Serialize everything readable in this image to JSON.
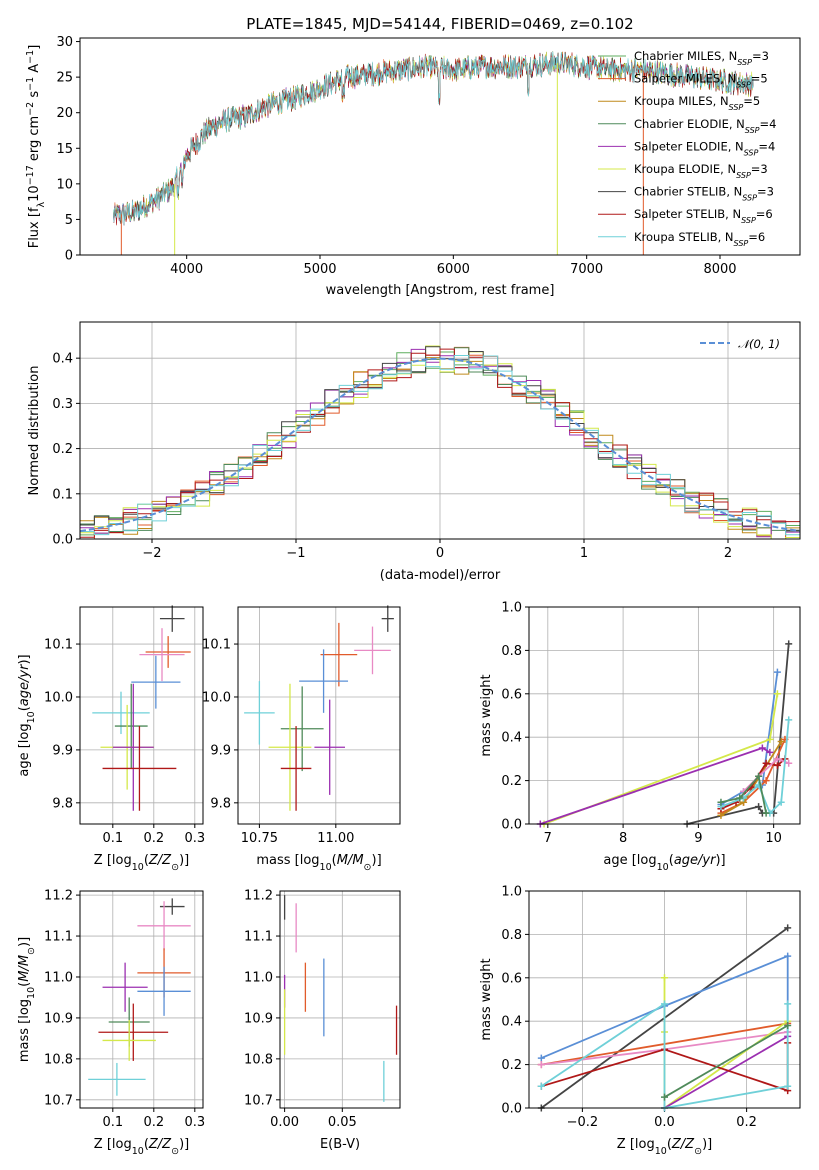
{
  "figure_title": "PLATE=1845, MJD=54144, FIBERID=0469, z=0.102",
  "series": [
    {
      "name": "Chabrier MILES, N$_{SSP}$=3",
      "legend_main": "Chabrier MILES, N",
      "legend_sub": "SSP",
      "legend_tail": "=3",
      "color": "#5fae5f"
    },
    {
      "name": "Salpeter MILES, N$_{SSP}$=5",
      "legend_main": "Salpeter MILES, N",
      "legend_sub": "SSP",
      "legend_tail": "=5",
      "color": "#e15b2b"
    },
    {
      "name": "Kroupa MILES, N$_{SSP}$=5",
      "legend_main": "Kroupa MILES, N",
      "legend_sub": "SSP",
      "legend_tail": "=5",
      "color": "#c08a1c"
    },
    {
      "name": "Chabrier ELODIE, N$_{SSP}$=4",
      "legend_main": "Chabrier ELODIE, N",
      "legend_sub": "SSP",
      "legend_tail": "=4",
      "color": "#4f8a5a"
    },
    {
      "name": "Salpeter ELODIE, N$_{SSP}$=4",
      "legend_main": "Salpeter ELODIE, N",
      "legend_sub": "SSP",
      "legend_tail": "=4",
      "color": "#9b2fb0"
    },
    {
      "name": "Kroupa ELODIE, N$_{SSP}$=3",
      "legend_main": "Kroupa ELODIE, N",
      "legend_sub": "SSP",
      "legend_tail": "=3",
      "color": "#d4e84a"
    },
    {
      "name": "Chabrier STELIB, N$_{SSP}$=3",
      "legend_main": "Chabrier STELIB, N",
      "legend_sub": "SSP",
      "legend_tail": "=3",
      "color": "#444444"
    },
    {
      "name": "Salpeter STELIB, N$_{SSP}$=6",
      "legend_main": "Salpeter STELIB, N",
      "legend_sub": "SSP",
      "legend_tail": "=6",
      "color": "#b01818"
    },
    {
      "name": "Kroupa STELIB, N$_{SSP}$=6",
      "legend_main": "Kroupa STELIB, N",
      "legend_sub": "SSP",
      "legend_tail": "=6",
      "color": "#6fd0d8"
    }
  ],
  "chart_data": [
    {
      "id": "spectrum",
      "type": "line",
      "title": "PLATE=1845, MJD=54144, FIBERID=0469, z=0.102",
      "xlabel": "wavelength [Angstrom, rest frame]",
      "ylabel": "Flux [f$_\\lambda$10$^{-17}$ erg cm$^{-2}$ s$^{-1}$ A$^{-1}$]",
      "xlim": [
        3200,
        8600
      ],
      "ylim": [
        0,
        30.5
      ],
      "xticks": [
        4000,
        5000,
        6000,
        7000,
        8000
      ],
      "yticks": [
        0,
        5,
        10,
        15,
        20,
        25,
        30
      ],
      "legend_position": "upper right",
      "grid": false,
      "continuum_anchors": {
        "wavelength": [
          3450,
          3600,
          3750,
          3900,
          4000,
          4150,
          4300,
          4450,
          4600,
          4800,
          5000,
          5200,
          5400,
          5600,
          5800,
          6000,
          6200,
          6500,
          6800,
          7000,
          7200,
          7400,
          7600,
          7800,
          8000,
          8250
        ],
        "flux": [
          5.5,
          6.0,
          7.5,
          9.5,
          14.0,
          17.5,
          19.0,
          19.5,
          21.0,
          22.0,
          23.5,
          25.0,
          25.5,
          26.0,
          26.5,
          26.0,
          26.5,
          26.5,
          27.0,
          26.5,
          26.0,
          26.0,
          25.5,
          25.0,
          24.5,
          24.0
        ]
      }
    },
    {
      "id": "residual_hist",
      "type": "histogram",
      "xlabel": "(data-model)/error",
      "ylabel": "Normed distribution",
      "xlim": [
        -2.5,
        2.5
      ],
      "ylim": [
        0,
        0.48
      ],
      "xticks": [
        -2,
        -1,
        0,
        1,
        2
      ],
      "yticks": [
        0.0,
        0.1,
        0.2,
        0.3,
        0.4
      ],
      "grid": true,
      "reference_curve": {
        "name": "$\\mathcal{N}(0,1)$",
        "legend_label": "𝒩(0, 1)",
        "mean": 0,
        "sigma": 1,
        "color": "#5a8fd6",
        "style": "dashed"
      },
      "legend_position": "upper right"
    },
    {
      "id": "age_vs_Z",
      "type": "errorbar",
      "xlabel": "Z [log$_{10}$(Z/Z$_\\odot$)]",
      "ylabel": "age  [log$_{10}$(age/yr)]",
      "xlim": [
        0.02,
        0.32
      ],
      "ylim": [
        9.76,
        10.17
      ],
      "xticks": [
        0.1,
        0.2,
        0.3
      ],
      "yticks": [
        9.8,
        9.9,
        10.0,
        10.1
      ],
      "grid": true,
      "points": [
        {
          "x": 0.245,
          "y": 10.148,
          "xerr": 0.03,
          "yerr": 0.025,
          "color": "#444444"
        },
        {
          "x": 0.235,
          "y": 10.085,
          "xerr": 0.055,
          "yerr": 0.03,
          "color": "#e15b2b"
        },
        {
          "x": 0.22,
          "y": 10.08,
          "xerr": 0.055,
          "yerr": 0.05,
          "color": "#e88ac4"
        },
        {
          "x": 0.205,
          "y": 10.028,
          "xerr": 0.06,
          "yerr": 0.05,
          "color": "#5a8fd6"
        },
        {
          "x": 0.12,
          "y": 9.97,
          "xerr": 0.07,
          "yerr": 0.04,
          "color": "#6fd0d8"
        },
        {
          "x": 0.145,
          "y": 9.945,
          "xerr": 0.04,
          "yerr": 0.08,
          "color": "#4f8a5a"
        },
        {
          "x": 0.135,
          "y": 9.905,
          "xerr": 0.065,
          "yerr": 0.08,
          "color": "#d4e84a"
        },
        {
          "x": 0.15,
          "y": 9.905,
          "xerr": 0.05,
          "yerr": 0.12,
          "color": "#9b2fb0"
        },
        {
          "x": 0.165,
          "y": 9.865,
          "xerr": 0.09,
          "yerr": 0.08,
          "color": "#b01818"
        }
      ]
    },
    {
      "id": "age_vs_mass",
      "type": "errorbar",
      "xlabel": "mass [log$_{10}$(M/M$_\\odot$)]",
      "ylabel": "",
      "xlim": [
        10.68,
        11.21
      ],
      "ylim": [
        9.76,
        10.17
      ],
      "xticks": [
        10.75,
        11.0
      ],
      "xticklabels": [
        "10.75",
        "11.00"
      ],
      "yticks": [
        9.8,
        9.9,
        10.0,
        10.1
      ],
      "grid": true,
      "points": [
        {
          "x": 11.17,
          "y": 10.148,
          "xerr": 0.02,
          "yerr": 0.025,
          "color": "#444444"
        },
        {
          "x": 11.12,
          "y": 10.088,
          "xerr": 0.06,
          "yerr": 0.045,
          "color": "#e88ac4"
        },
        {
          "x": 11.01,
          "y": 10.08,
          "xerr": 0.06,
          "yerr": 0.06,
          "color": "#e15b2b"
        },
        {
          "x": 10.96,
          "y": 10.03,
          "xerr": 0.08,
          "yerr": 0.06,
          "color": "#5a8fd6"
        },
        {
          "x": 10.75,
          "y": 9.97,
          "xerr": 0.05,
          "yerr": 0.06,
          "color": "#6fd0d8"
        },
        {
          "x": 10.89,
          "y": 9.94,
          "xerr": 0.07,
          "yerr": 0.08,
          "color": "#4f8a5a"
        },
        {
          "x": 10.85,
          "y": 9.905,
          "xerr": 0.07,
          "yerr": 0.12,
          "color": "#d4e84a"
        },
        {
          "x": 10.98,
          "y": 9.905,
          "xerr": 0.05,
          "yerr": 0.09,
          "color": "#9b2fb0"
        },
        {
          "x": 10.87,
          "y": 9.865,
          "xerr": 0.05,
          "yerr": 0.08,
          "color": "#b01818"
        }
      ]
    },
    {
      "id": "massweight_vs_age",
      "type": "line",
      "xlabel": "age  [log$_{10}$(age/yr)]",
      "ylabel": "mass weight",
      "xlim": [
        6.75,
        10.35
      ],
      "ylim": [
        0,
        1.0
      ],
      "xticks": [
        7,
        8,
        9,
        10
      ],
      "yticks": [
        0.0,
        0.2,
        0.4,
        0.6,
        0.8,
        1.0
      ],
      "grid": true,
      "series": [
        {
          "color": "#444444",
          "x": [
            8.85,
            9.8,
            9.85,
            10.0,
            10.2
          ],
          "y": [
            0.0,
            0.08,
            0.05,
            0.05,
            0.83
          ]
        },
        {
          "color": "#5a8fd6",
          "x": [
            9.3,
            9.6,
            9.85,
            10.05
          ],
          "y": [
            0.09,
            0.15,
            0.18,
            0.7
          ]
        },
        {
          "color": "#d4e84a",
          "x": [
            6.95,
            9.95,
            10.05
          ],
          "y": [
            0.0,
            0.39,
            0.6
          ]
        },
        {
          "color": "#9b2fb0",
          "x": [
            6.9,
            9.85,
            9.95
          ],
          "y": [
            0.0,
            0.35,
            0.33
          ]
        },
        {
          "color": "#e15b2b",
          "x": [
            9.3,
            9.6,
            9.9,
            10.15
          ],
          "y": [
            0.05,
            0.1,
            0.2,
            0.39
          ]
        },
        {
          "color": "#c08a1c",
          "x": [
            9.3,
            9.6,
            10.1
          ],
          "y": [
            0.04,
            0.1,
            0.38
          ]
        },
        {
          "color": "#b01818",
          "x": [
            9.3,
            9.5,
            9.7,
            9.9,
            10.05,
            10.15
          ],
          "y": [
            0.07,
            0.1,
            0.17,
            0.28,
            0.27,
            0.3
          ]
        },
        {
          "color": "#e88ac4",
          "x": [
            9.6,
            9.8,
            10.05,
            10.2
          ],
          "y": [
            0.15,
            0.22,
            0.3,
            0.28
          ]
        },
        {
          "color": "#6fd0d8",
          "x": [
            9.3,
            9.6,
            9.8,
            9.95,
            10.1,
            10.2
          ],
          "y": [
            0.08,
            0.12,
            0.18,
            0.05,
            0.1,
            0.48
          ]
        },
        {
          "color": "#4f8a5a",
          "x": [
            9.3,
            9.55,
            9.8,
            9.9
          ],
          "y": [
            0.1,
            0.12,
            0.22,
            0.05
          ]
        }
      ]
    },
    {
      "id": "mass_vs_Z",
      "type": "errorbar",
      "xlabel": "Z [log$_{10}$(Z/Z$_\\odot$)]",
      "ylabel": "mass [log$_{10}$(M/M$_\\odot$)]",
      "xlim": [
        0.02,
        0.32
      ],
      "ylim": [
        10.68,
        11.21
      ],
      "xticks": [
        0.1,
        0.2,
        0.3
      ],
      "yticks": [
        10.7,
        10.8,
        10.9,
        11.0,
        11.1,
        11.2
      ],
      "grid": true,
      "points": [
        {
          "x": 0.245,
          "y": 11.172,
          "xerr": 0.03,
          "yerr": 0.02,
          "color": "#444444"
        },
        {
          "x": 0.225,
          "y": 11.125,
          "xerr": 0.065,
          "yerr": 0.06,
          "color": "#e88ac4"
        },
        {
          "x": 0.225,
          "y": 11.01,
          "xerr": 0.065,
          "yerr": 0.06,
          "color": "#e15b2b"
        },
        {
          "x": 0.225,
          "y": 10.965,
          "xerr": 0.065,
          "yerr": 0.06,
          "color": "#5a8fd6"
        },
        {
          "x": 0.13,
          "y": 10.975,
          "xerr": 0.055,
          "yerr": 0.06,
          "color": "#9b2fb0"
        },
        {
          "x": 0.14,
          "y": 10.89,
          "xerr": 0.05,
          "yerr": 0.06,
          "color": "#4f8a5a"
        },
        {
          "x": 0.15,
          "y": 10.865,
          "xerr": 0.085,
          "yerr": 0.07,
          "color": "#b01818"
        },
        {
          "x": 0.14,
          "y": 10.845,
          "xerr": 0.065,
          "yerr": 0.05,
          "color": "#d4e84a"
        },
        {
          "x": 0.11,
          "y": 10.75,
          "xerr": 0.07,
          "yerr": 0.04,
          "color": "#6fd0d8"
        }
      ]
    },
    {
      "id": "mass_vs_EBV",
      "type": "errorbar",
      "xlabel": "E(B-V)",
      "ylabel": "",
      "xlim": [
        -0.004,
        0.1
      ],
      "ylim": [
        10.68,
        11.21
      ],
      "xticks": [
        0.0,
        0.05
      ],
      "xticklabels": [
        "0.00",
        "0.05"
      ],
      "yticks": [
        10.7,
        10.8,
        10.9,
        11.0,
        11.1,
        11.2
      ],
      "grid": true,
      "points": [
        {
          "x": 0.0,
          "y": 11.17,
          "xerr": 0,
          "yerr": 0.03,
          "color": "#444444"
        },
        {
          "x": 0.01,
          "y": 11.12,
          "xerr": 0,
          "yerr": 0.06,
          "color": "#e88ac4"
        },
        {
          "x": 0.018,
          "y": 10.975,
          "xerr": 0,
          "yerr": 0.06,
          "color": "#e15b2b"
        },
        {
          "x": 0.0,
          "y": 10.965,
          "xerr": 0,
          "yerr": 0.04,
          "color": "#9b2fb0"
        },
        {
          "x": 0.034,
          "y": 10.95,
          "xerr": 0,
          "yerr": 0.095,
          "color": "#5a8fd6"
        },
        {
          "x": 0.0,
          "y": 10.89,
          "xerr": 0,
          "yerr": 0.08,
          "color": "#d4e84a"
        },
        {
          "x": 0.097,
          "y": 10.87,
          "xerr": 0,
          "yerr": 0.06,
          "color": "#b01818"
        },
        {
          "x": 0.086,
          "y": 10.745,
          "xerr": 0,
          "yerr": 0.05,
          "color": "#6fd0d8"
        }
      ]
    },
    {
      "id": "massweight_vs_Z",
      "type": "line",
      "xlabel": "Z [log$_{10}$(Z/Z$_\\odot$)]",
      "ylabel": "mass weight",
      "xlim": [
        -0.33,
        0.33
      ],
      "ylim": [
        0,
        1.0
      ],
      "xticks": [
        -0.2,
        0.0,
        0.2
      ],
      "xticklabels": [
        "−0.2",
        "0.0",
        "0.2"
      ],
      "yticks": [
        0.0,
        0.2,
        0.4,
        0.6,
        0.8,
        1.0
      ],
      "grid": true,
      "series": [
        {
          "color": "#444444",
          "x": [
            -0.3,
            0.3
          ],
          "y": [
            0.0,
            0.83
          ]
        },
        {
          "color": "#5a8fd6",
          "x": [
            -0.3,
            0.0,
            0.3,
            0.3
          ],
          "y": [
            0.23,
            0.47,
            0.7,
            0.35
          ]
        },
        {
          "color": "#e15b2b",
          "x": [
            -0.3,
            0.3
          ],
          "y": [
            0.2,
            0.39
          ]
        },
        {
          "color": "#e88ac4",
          "x": [
            -0.3,
            0.0,
            0.3
          ],
          "y": [
            0.2,
            0.27,
            0.35
          ]
        },
        {
          "color": "#d4e84a",
          "x": [
            0.0,
            0.0,
            0.0,
            0.3
          ],
          "y": [
            0.6,
            0.35,
            0.0,
            0.4
          ]
        },
        {
          "color": "#9b2fb0",
          "x": [
            0.0,
            0.3
          ],
          "y": [
            0.0,
            0.33
          ]
        },
        {
          "color": "#b01818",
          "x": [
            -0.3,
            0.0,
            0.3,
            0.3
          ],
          "y": [
            0.1,
            0.27,
            0.08,
            0.3
          ]
        },
        {
          "color": "#6fd0d8",
          "x": [
            -0.3,
            0.0,
            0.0,
            0.3,
            0.3
          ],
          "y": [
            0.1,
            0.48,
            0.0,
            0.1,
            0.48
          ]
        },
        {
          "color": "#4f8a5a",
          "x": [
            0.0,
            0.3
          ],
          "y": [
            0.05,
            0.38
          ]
        }
      ]
    }
  ]
}
